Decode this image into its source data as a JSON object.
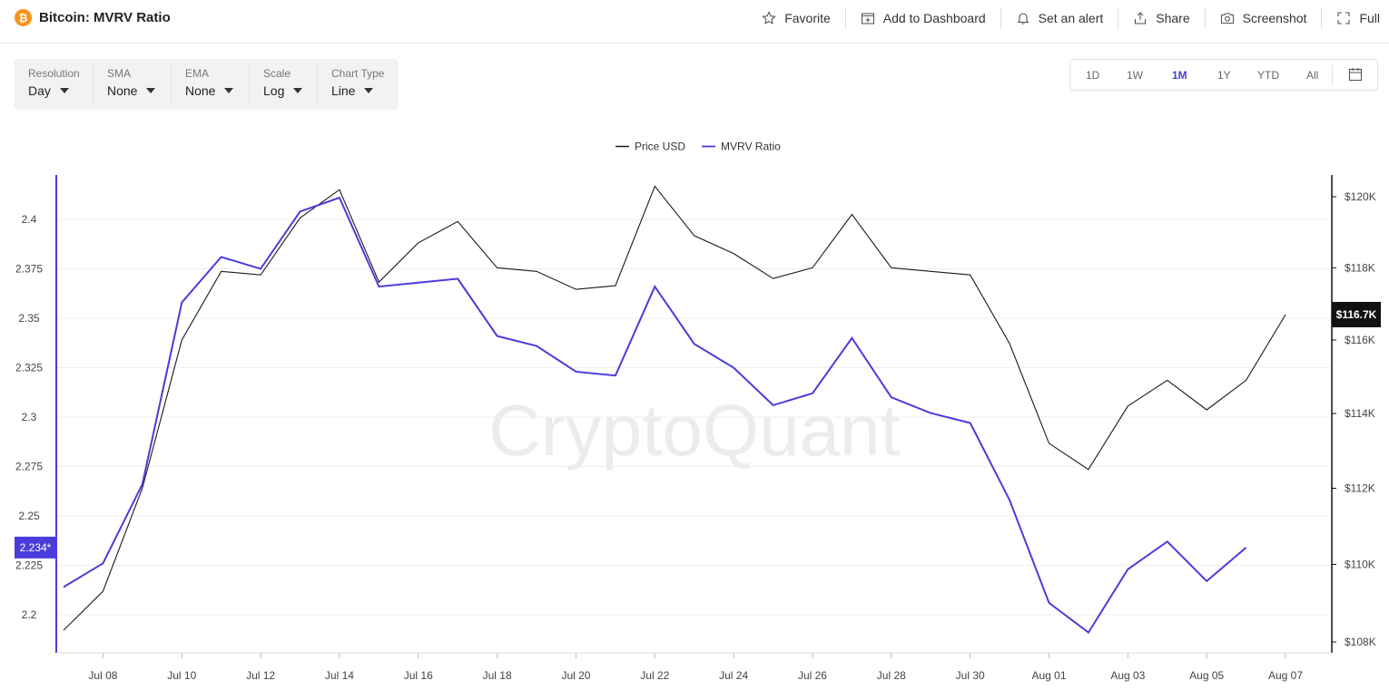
{
  "header": {
    "logo_glyph": "₿",
    "title": "Bitcoin: MVRV Ratio",
    "actions": [
      {
        "label": "Favorite",
        "icon": "star-icon"
      },
      {
        "label": "Add to Dashboard",
        "icon": "dashboard-add-icon"
      },
      {
        "label": "Set an alert",
        "icon": "bell-icon"
      },
      {
        "label": "Share",
        "icon": "share-icon"
      },
      {
        "label": "Screenshot",
        "icon": "camera-icon"
      },
      {
        "label": "Full",
        "icon": "fullscreen-icon"
      }
    ]
  },
  "controls": {
    "resolution": {
      "label": "Resolution",
      "value": "Day"
    },
    "sma": {
      "label": "SMA",
      "value": "None"
    },
    "ema": {
      "label": "EMA",
      "value": "None"
    },
    "scale": {
      "label": "Scale",
      "value": "Log"
    },
    "chart_type": {
      "label": "Chart Type",
      "value": "Line"
    }
  },
  "periods": {
    "items": [
      "1D",
      "1W",
      "1M",
      "1Y",
      "YTD",
      "All"
    ],
    "active": "1M",
    "calendar_icon": "calendar-icon"
  },
  "watermark": "CryptoQuant",
  "colors": {
    "price": "#1a1a1a",
    "mvrv": "#4a3cdb",
    "grid": "#eeeeee",
    "badge_price": "#111111"
  },
  "chart_data": {
    "type": "line",
    "title": "Bitcoin: MVRV Ratio",
    "legend_position": "top-center",
    "grid": true,
    "x": [
      "Jul 07",
      "Jul 08",
      "Jul 09",
      "Jul 10",
      "Jul 11",
      "Jul 12",
      "Jul 13",
      "Jul 14",
      "Jul 15",
      "Jul 16",
      "Jul 17",
      "Jul 18",
      "Jul 19",
      "Jul 20",
      "Jul 21",
      "Jul 22",
      "Jul 23",
      "Jul 24",
      "Jul 25",
      "Jul 26",
      "Jul 27",
      "Jul 28",
      "Jul 29",
      "Jul 30",
      "Jul 31",
      "Aug 01",
      "Aug 02",
      "Aug 03",
      "Aug 04",
      "Aug 05",
      "Aug 06",
      "Aug 07"
    ],
    "x_ticks": [
      "Jul 08",
      "Jul 10",
      "Jul 12",
      "Jul 14",
      "Jul 16",
      "Jul 18",
      "Jul 20",
      "Jul 22",
      "Jul 24",
      "Jul 26",
      "Jul 28",
      "Jul 30",
      "Aug 01",
      "Aug 03",
      "Aug 05",
      "Aug 07"
    ],
    "series": [
      {
        "name": "Price USD",
        "axis": "right",
        "values": [
          108300,
          109300,
          112000,
          116000,
          117900,
          117800,
          119400,
          120200,
          117600,
          118700,
          119300,
          118000,
          117900,
          117400,
          117500,
          120300,
          118900,
          118400,
          117700,
          118000,
          119500,
          118000,
          117900,
          117800,
          115900,
          113200,
          112500,
          114200,
          114900,
          114100,
          114900,
          116700
        ]
      },
      {
        "name": "MVRV Ratio",
        "axis": "left",
        "values": [
          2.214,
          2.226,
          2.266,
          2.358,
          2.381,
          2.375,
          2.404,
          2.411,
          2.366,
          2.368,
          2.37,
          2.341,
          2.336,
          2.323,
          2.321,
          2.366,
          2.337,
          2.325,
          2.306,
          2.312,
          2.34,
          2.31,
          2.302,
          2.297,
          2.258,
          2.206,
          2.191,
          2.223,
          2.237,
          2.217,
          2.234,
          null
        ]
      }
    ],
    "y_left": {
      "ticks": [
        "2.2",
        "2.225",
        "2.25",
        "2.275",
        "2.3",
        "2.325",
        "2.35",
        "2.375",
        "2.4"
      ],
      "range": [
        2.187,
        2.425
      ]
    },
    "y_right": {
      "ticks": [
        "$108K",
        "$110K",
        "$112K",
        "$114K",
        "$116K",
        "$118K",
        "$120K"
      ],
      "range": [
        107800,
        120800
      ],
      "scale": "log"
    },
    "badges": {
      "left": "2.234*",
      "right": "$116.7K"
    }
  }
}
